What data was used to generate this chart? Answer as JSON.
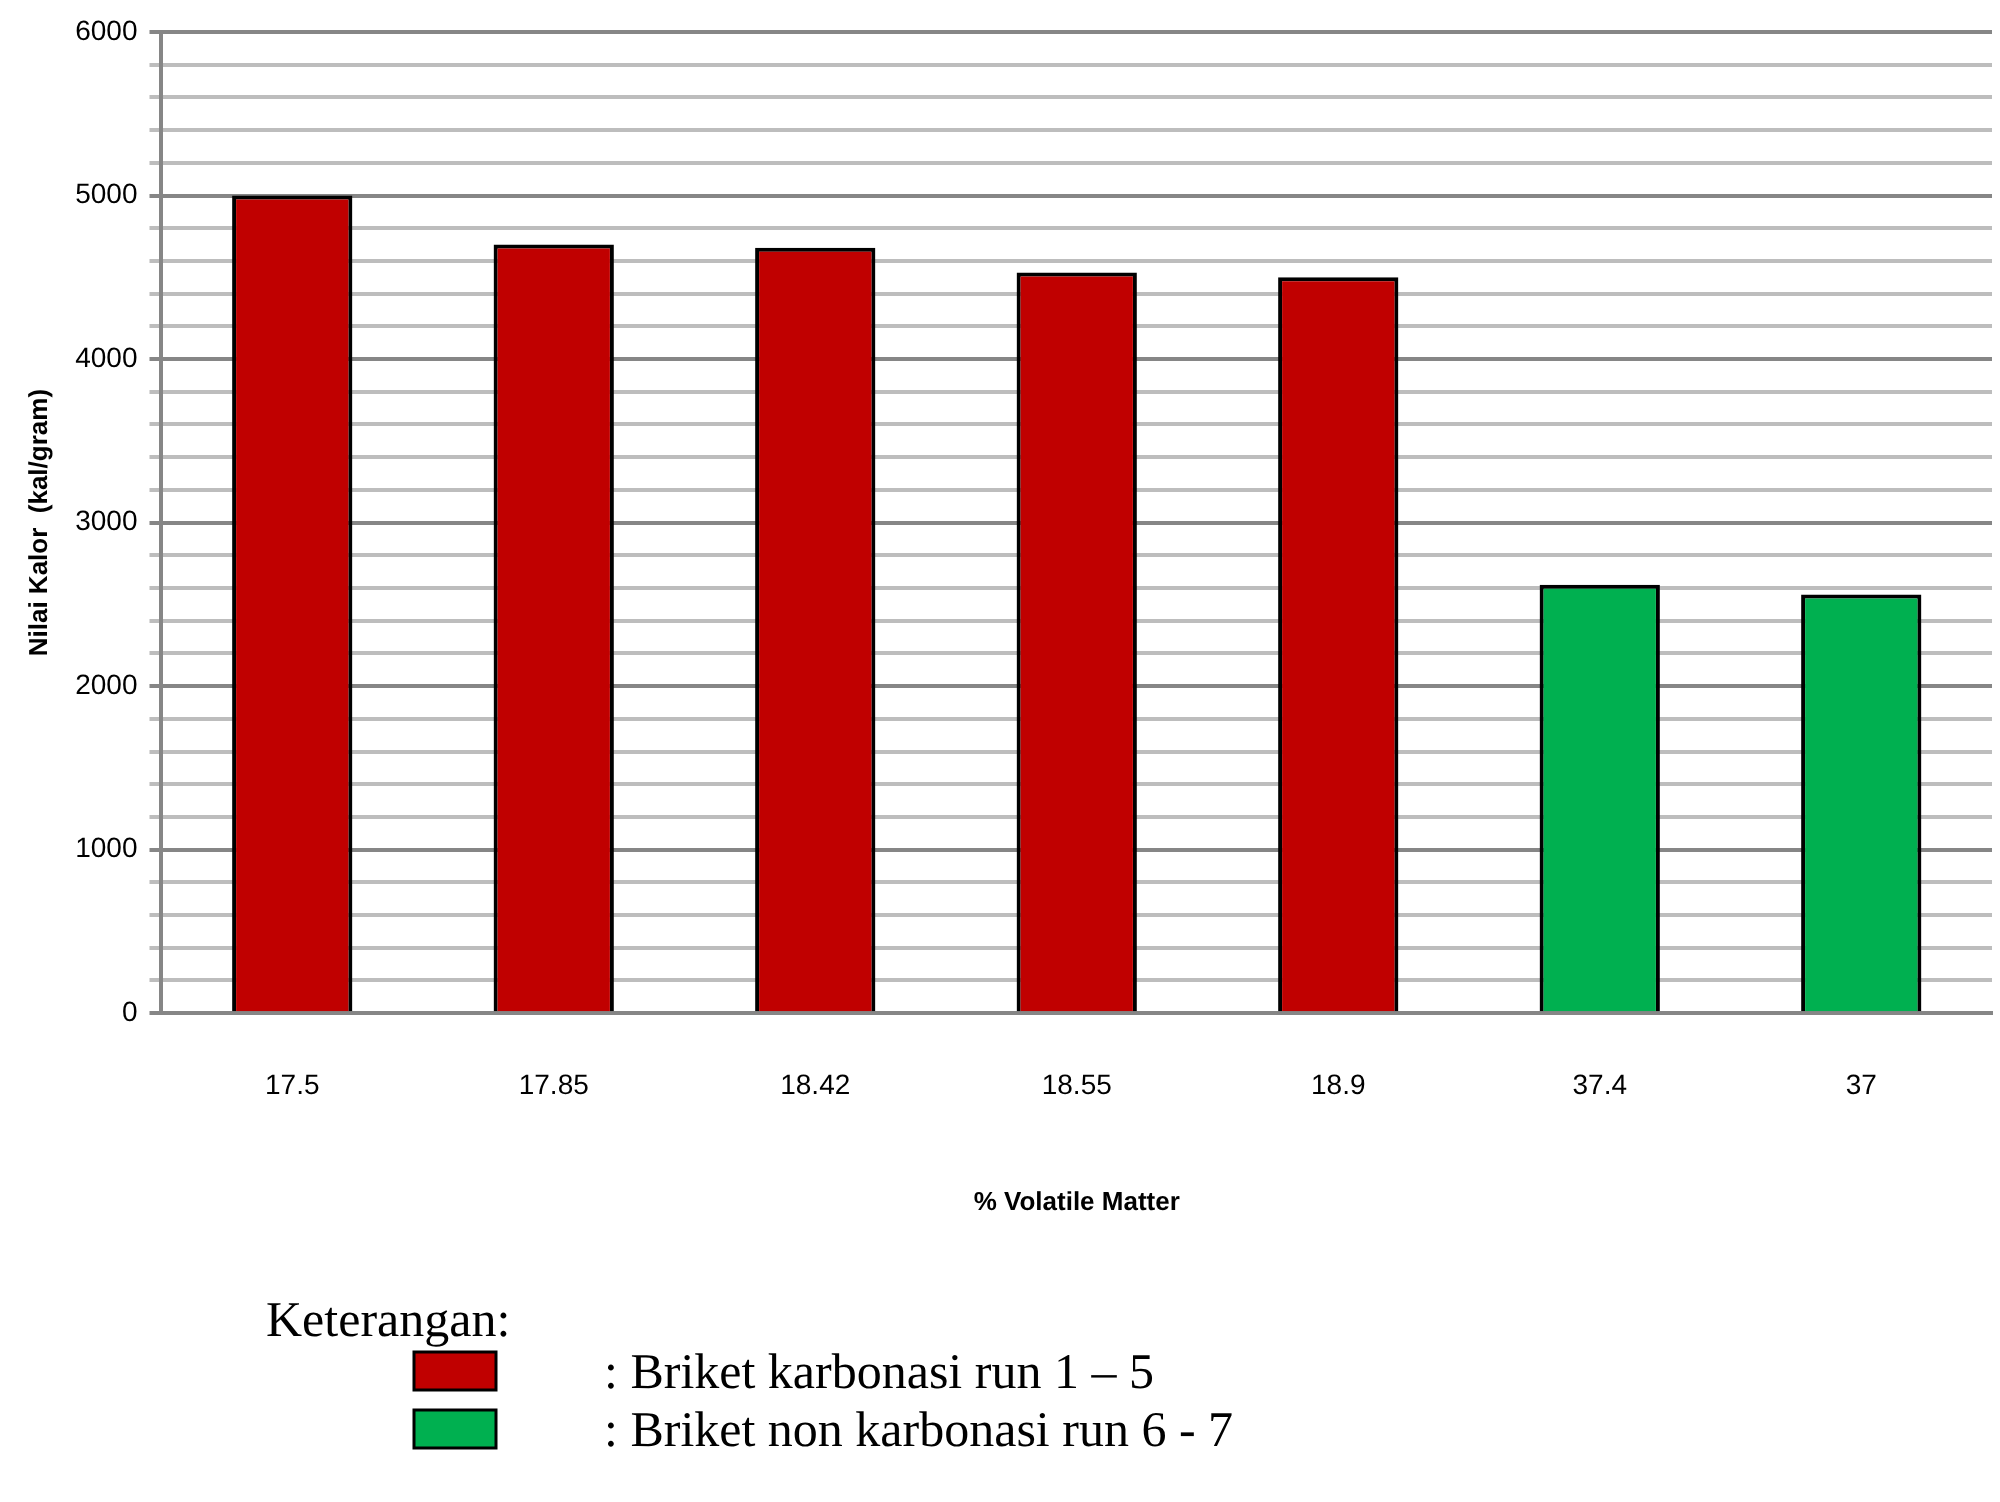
{
  "chart_data": {
    "type": "bar",
    "xlabel": "% Volatile Matter",
    "ylabel": "Nilai Kalor  (kal/gram)",
    "legend_title": "Keterangan:",
    "legend": "bottom",
    "grid": "y",
    "categories": [
      "17.5",
      "17.85",
      "18.42",
      "18.55",
      "18.9",
      "37.4",
      "37"
    ],
    "series": [
      {
        "name": ": Briket karbonasi run 1 – 5",
        "color": "#c00000",
        "values": [
          5000,
          4700,
          4680,
          4530,
          4500,
          null,
          null
        ]
      },
      {
        "name": ": Briket non karbonasi run 6 - 7",
        "color": "#00b050",
        "values": [
          null,
          null,
          null,
          null,
          null,
          2620,
          2560
        ]
      }
    ],
    "ylim": [
      0,
      6000
    ],
    "yticks": [
      0,
      {
        "value": 200,
        "label": null
      },
      {
        "value": 400,
        "label": null
      },
      {
        "value": 600,
        "label": null
      },
      {
        "value": 800,
        "label": null
      },
      1000,
      {
        "value": 1200,
        "label": null
      },
      {
        "value": 1400,
        "label": null
      },
      {
        "value": 1600,
        "label": null
      },
      {
        "value": 1800,
        "label": null
      },
      2000,
      {
        "value": 2200,
        "label": null
      },
      {
        "value": 2400,
        "label": null
      },
      {
        "value": 2600,
        "label": null
      },
      {
        "value": 2800,
        "label": null
      },
      3000,
      {
        "value": 3200,
        "label": null
      },
      {
        "value": 3400,
        "label": null
      },
      {
        "value": 3600,
        "label": null
      },
      {
        "value": 3800,
        "label": null
      },
      4000,
      {
        "value": 4200,
        "label": null
      },
      {
        "value": 4400,
        "label": null
      },
      {
        "value": 4600,
        "label": null
      },
      {
        "value": 4800,
        "label": null
      },
      5000,
      {
        "value": 5200,
        "label": null
      },
      {
        "value": 5400,
        "label": null
      },
      {
        "value": 5600,
        "label": null
      },
      {
        "value": 5800,
        "label": null
      },
      6000
    ]
  }
}
